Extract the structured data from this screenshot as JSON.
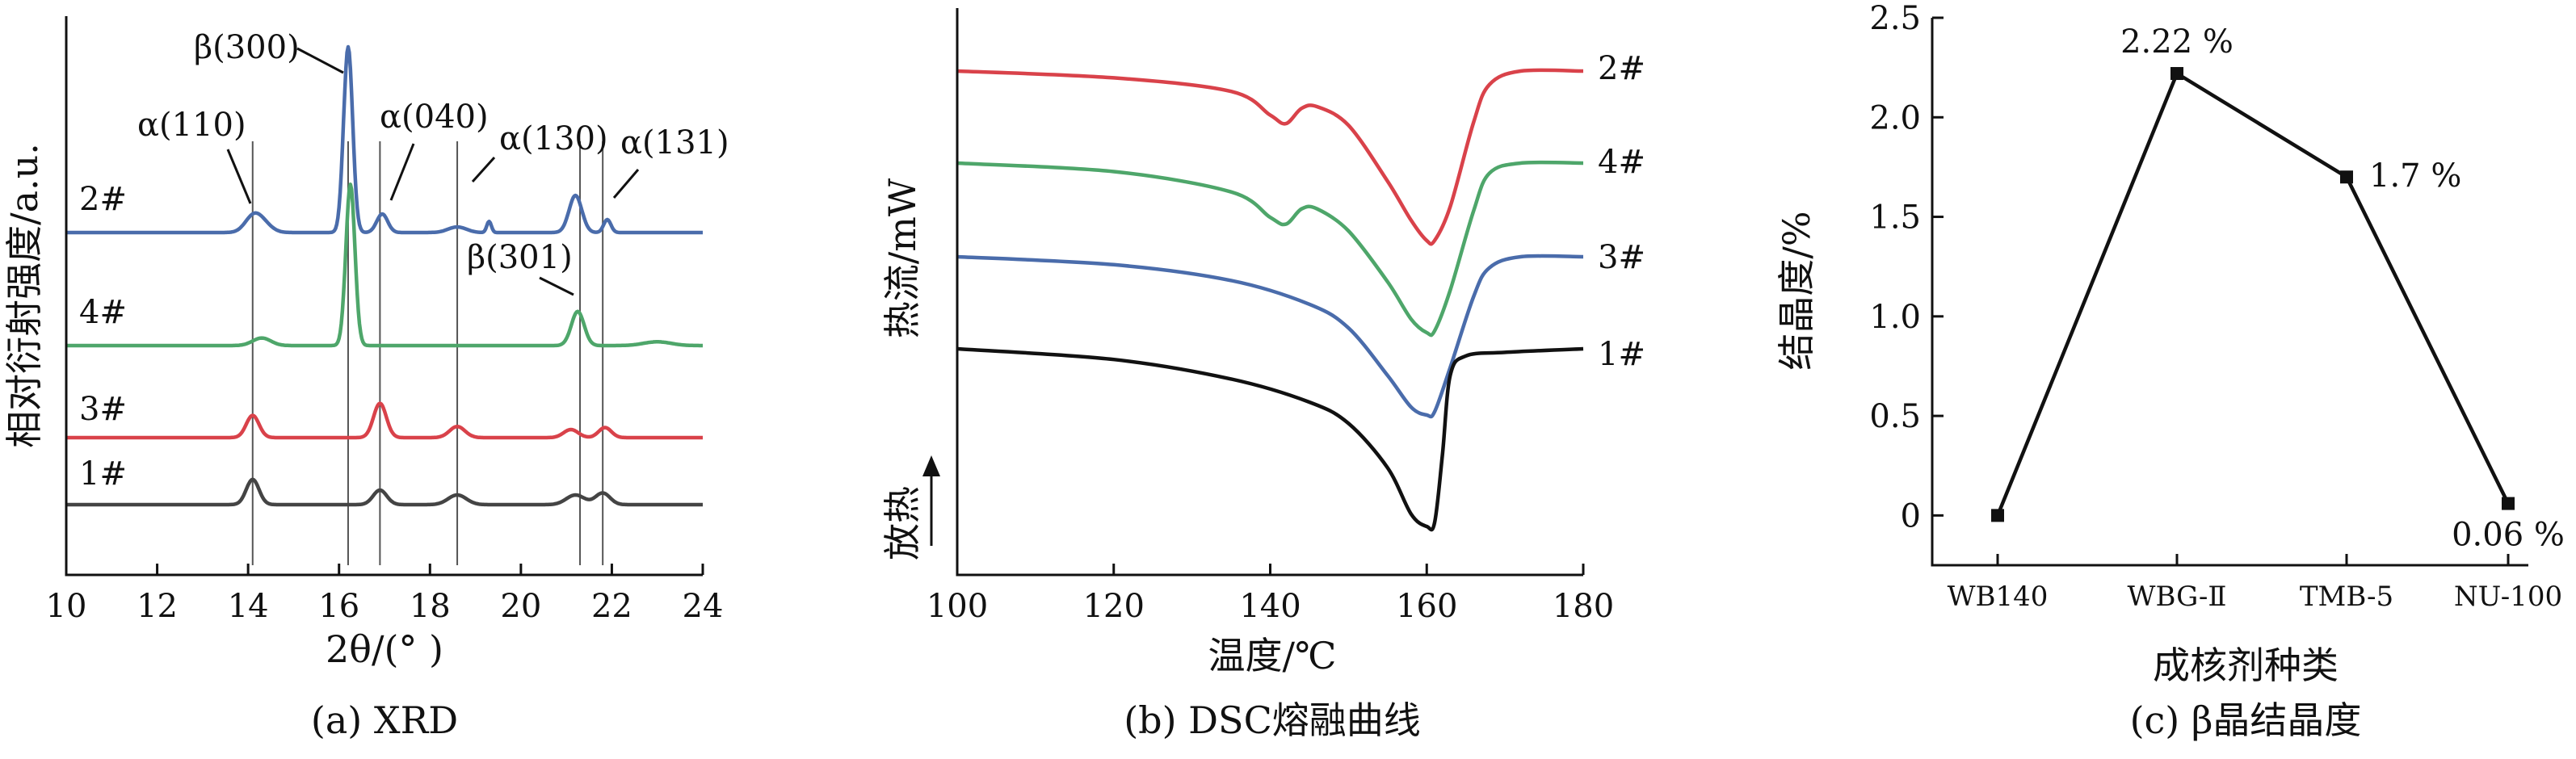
{
  "panels": {
    "a": {
      "caption": "(a) XRD",
      "xlabel": "2θ/(° )",
      "ylabel": "相对衍射强度/a.u."
    },
    "b": {
      "caption": "(b) DSC熔融曲线",
      "xlabel": "温度/℃",
      "ylabel": "热流/mW",
      "exo_label": "放热"
    },
    "c": {
      "caption": "(c) β晶结晶度",
      "xlabel": "成核剂种类",
      "ylabel": "结晶度/%"
    }
  },
  "chart_data": [
    {
      "type": "line",
      "panel": "a",
      "xlim": [
        10,
        24
      ],
      "xticks": [
        10,
        12,
        14,
        16,
        18,
        20,
        22,
        24
      ],
      "ref_lines": [
        14.1,
        16.2,
        16.9,
        18.6,
        21.3,
        21.8
      ],
      "annotations": [
        "β(300)",
        "α(110)",
        "α(040)",
        "α(130)",
        "α(131)",
        "β(301)"
      ],
      "series": [
        {
          "name": "2#",
          "color": "#4a6cab",
          "baseline": 0.0,
          "peaks": [
            [
              14.1,
              0.07,
              0.18
            ],
            [
              14.3,
              0.05,
              0.2
            ],
            [
              16.2,
              1.0,
              0.1
            ],
            [
              16.95,
              0.1,
              0.12
            ],
            [
              18.6,
              0.03,
              0.2
            ],
            [
              19.3,
              0.06,
              0.05
            ],
            [
              21.2,
              0.2,
              0.14
            ],
            [
              21.9,
              0.07,
              0.08
            ]
          ]
        },
        {
          "name": "4#",
          "color": "#4ea66a",
          "baseline": 0.0,
          "peaks": [
            [
              14.3,
              0.04,
              0.2
            ],
            [
              16.25,
              0.85,
              0.1
            ],
            [
              21.25,
              0.18,
              0.14
            ],
            [
              23.0,
              0.02,
              0.3
            ]
          ]
        },
        {
          "name": "3#",
          "color": "#d9424a",
          "baseline": 0.0,
          "peaks": [
            [
              14.1,
              0.22,
              0.14
            ],
            [
              16.9,
              0.34,
              0.14
            ],
            [
              18.6,
              0.11,
              0.17
            ],
            [
              21.1,
              0.08,
              0.16
            ],
            [
              21.85,
              0.1,
              0.14
            ]
          ]
        },
        {
          "name": "1#",
          "color": "#444444",
          "baseline": 0.0,
          "peaks": [
            [
              14.1,
              0.26,
              0.14
            ],
            [
              16.9,
              0.15,
              0.15
            ],
            [
              18.6,
              0.1,
              0.2
            ],
            [
              21.2,
              0.1,
              0.2
            ],
            [
              21.8,
              0.12,
              0.16
            ]
          ]
        }
      ]
    },
    {
      "type": "line",
      "panel": "b",
      "xlim": [
        100,
        180
      ],
      "xticks": [
        100,
        120,
        140,
        160,
        180
      ],
      "series": [
        {
          "name": "2#",
          "color": "#d9424a",
          "points": [
            [
              100,
              0.0
            ],
            [
              120,
              -0.04
            ],
            [
              135,
              -0.12
            ],
            [
              140,
              -0.26
            ],
            [
              142,
              -0.31
            ],
            [
              144,
              -0.22
            ],
            [
              146,
              -0.21
            ],
            [
              150,
              -0.32
            ],
            [
              155,
              -0.65
            ],
            [
              158,
              -0.88
            ],
            [
              160,
              -1.0
            ],
            [
              161,
              -1.0
            ],
            [
              163,
              -0.8
            ],
            [
              166,
              -0.3
            ],
            [
              168,
              -0.08
            ],
            [
              172,
              0.0
            ],
            [
              180,
              0.0
            ]
          ]
        },
        {
          "name": "4#",
          "color": "#4ea66a",
          "points": [
            [
              100,
              0.0
            ],
            [
              120,
              -0.05
            ],
            [
              135,
              -0.17
            ],
            [
              140,
              -0.32
            ],
            [
              142,
              -0.36
            ],
            [
              144,
              -0.27
            ],
            [
              146,
              -0.27
            ],
            [
              150,
              -0.4
            ],
            [
              155,
              -0.7
            ],
            [
              158,
              -0.92
            ],
            [
              160,
              -1.0
            ],
            [
              161,
              -0.99
            ],
            [
              163,
              -0.75
            ],
            [
              166,
              -0.28
            ],
            [
              168,
              -0.06
            ],
            [
              172,
              0.0
            ],
            [
              180,
              0.0
            ]
          ]
        },
        {
          "name": "3#",
          "color": "#4a6cab",
          "points": [
            [
              100,
              0.0
            ],
            [
              120,
              -0.05
            ],
            [
              135,
              -0.15
            ],
            [
              145,
              -0.3
            ],
            [
              150,
              -0.45
            ],
            [
              155,
              -0.75
            ],
            [
              158,
              -0.95
            ],
            [
              160,
              -1.0
            ],
            [
              161,
              -0.98
            ],
            [
              163,
              -0.7
            ],
            [
              166,
              -0.25
            ],
            [
              168,
              -0.07
            ],
            [
              172,
              0.0
            ],
            [
              180,
              0.0
            ]
          ]
        },
        {
          "name": "1#",
          "color": "#111111",
          "points": [
            [
              100,
              0.0
            ],
            [
              120,
              -0.06
            ],
            [
              135,
              -0.17
            ],
            [
              145,
              -0.3
            ],
            [
              150,
              -0.42
            ],
            [
              155,
              -0.67
            ],
            [
              158,
              -0.93
            ],
            [
              160,
              -1.0
            ],
            [
              161,
              -0.98
            ],
            [
              162,
              -0.6
            ],
            [
              163,
              -0.15
            ],
            [
              165,
              -0.04
            ],
            [
              170,
              -0.02
            ],
            [
              180,
              0.0
            ]
          ]
        }
      ]
    },
    {
      "type": "line",
      "panel": "c",
      "categories": [
        "WB140",
        "WBG-Ⅱ",
        "TMB-5",
        "NU-100"
      ],
      "values": [
        0,
        2.22,
        1.7,
        0.06
      ],
      "point_labels": [
        "",
        "2.22 %",
        "1.7 %",
        "0.06 %"
      ],
      "ylim": [
        -0.25,
        2.5
      ],
      "yticks": [
        0,
        0.5,
        1.0,
        1.5,
        2.0,
        2.5
      ],
      "ytick_labels": [
        "0",
        "0.5",
        "1.0",
        "1.5",
        "2.0",
        "2.5"
      ],
      "color": "#111111"
    }
  ]
}
